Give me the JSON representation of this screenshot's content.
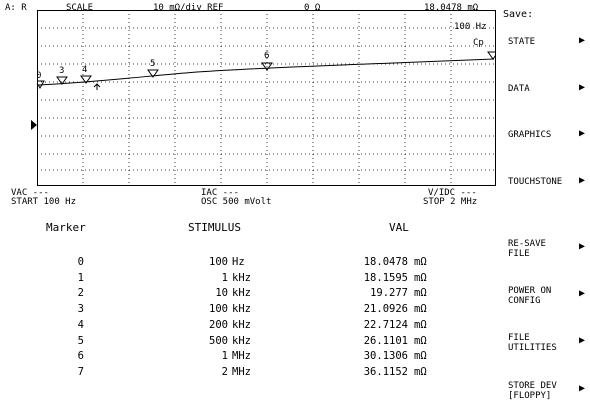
{
  "header": {
    "channel": "A: R",
    "scale_label": "SCALE",
    "scale_value": "10 mΩ/div REF",
    "ref_value": "0 Ω",
    "marker_readout": "18.0478 mΩ"
  },
  "graph": {
    "freq_annotation": "100 Hz",
    "cp_label": "Cp",
    "marker_labels": [
      "0",
      "3",
      "4",
      "5",
      "6"
    ]
  },
  "footer": {
    "vac": "VAC ---",
    "start": "START 100 Hz",
    "iac": "IAC ---",
    "osc": "OSC 500 mVolt",
    "vdc": "V/IDC ---",
    "stop": "STOP 2 MHz"
  },
  "table": {
    "headers": [
      "Marker",
      "STIMULUS",
      "VAL"
    ],
    "rows": [
      {
        "marker": "0",
        "stim_val": "100",
        "stim_unit": "Hz",
        "value": "18.0478",
        "unit": "mΩ"
      },
      {
        "marker": "1",
        "stim_val": "1",
        "stim_unit": "kHz",
        "value": "18.1595",
        "unit": "mΩ"
      },
      {
        "marker": "2",
        "stim_val": "10",
        "stim_unit": "kHz",
        "value": "19.277",
        "unit": "mΩ"
      },
      {
        "marker": "3",
        "stim_val": "100",
        "stim_unit": "kHz",
        "value": "21.0926",
        "unit": "mΩ"
      },
      {
        "marker": "4",
        "stim_val": "200",
        "stim_unit": "kHz",
        "value": "22.7124",
        "unit": "mΩ"
      },
      {
        "marker": "5",
        "stim_val": "500",
        "stim_unit": "kHz",
        "value": "26.1101",
        "unit": "mΩ"
      },
      {
        "marker": "6",
        "stim_val": "1",
        "stim_unit": "MHz",
        "value": "30.1306",
        "unit": "mΩ"
      },
      {
        "marker": "7",
        "stim_val": "2",
        "stim_unit": "MHz",
        "value": "36.1152",
        "unit": "mΩ"
      }
    ]
  },
  "softkeys": {
    "title": "Save:",
    "items": [
      {
        "label": "STATE"
      },
      {
        "label": "DATA"
      },
      {
        "label": "GRAPHICS"
      },
      {
        "label": "TOUCHSTONE"
      },
      {
        "label": "RE-SAVE\nFILE"
      },
      {
        "label": "POWER ON\nCONFIG"
      },
      {
        "label": "FILE\nUTILITIES"
      },
      {
        "label": "STORE DEV\n[FLOPPY]"
      }
    ]
  },
  "icons": {
    "softkey_arrow": "right-triangle-icon",
    "ref_marker": "ref-position-icon",
    "marker_symbol": "down-triangle-marker-icon"
  }
}
